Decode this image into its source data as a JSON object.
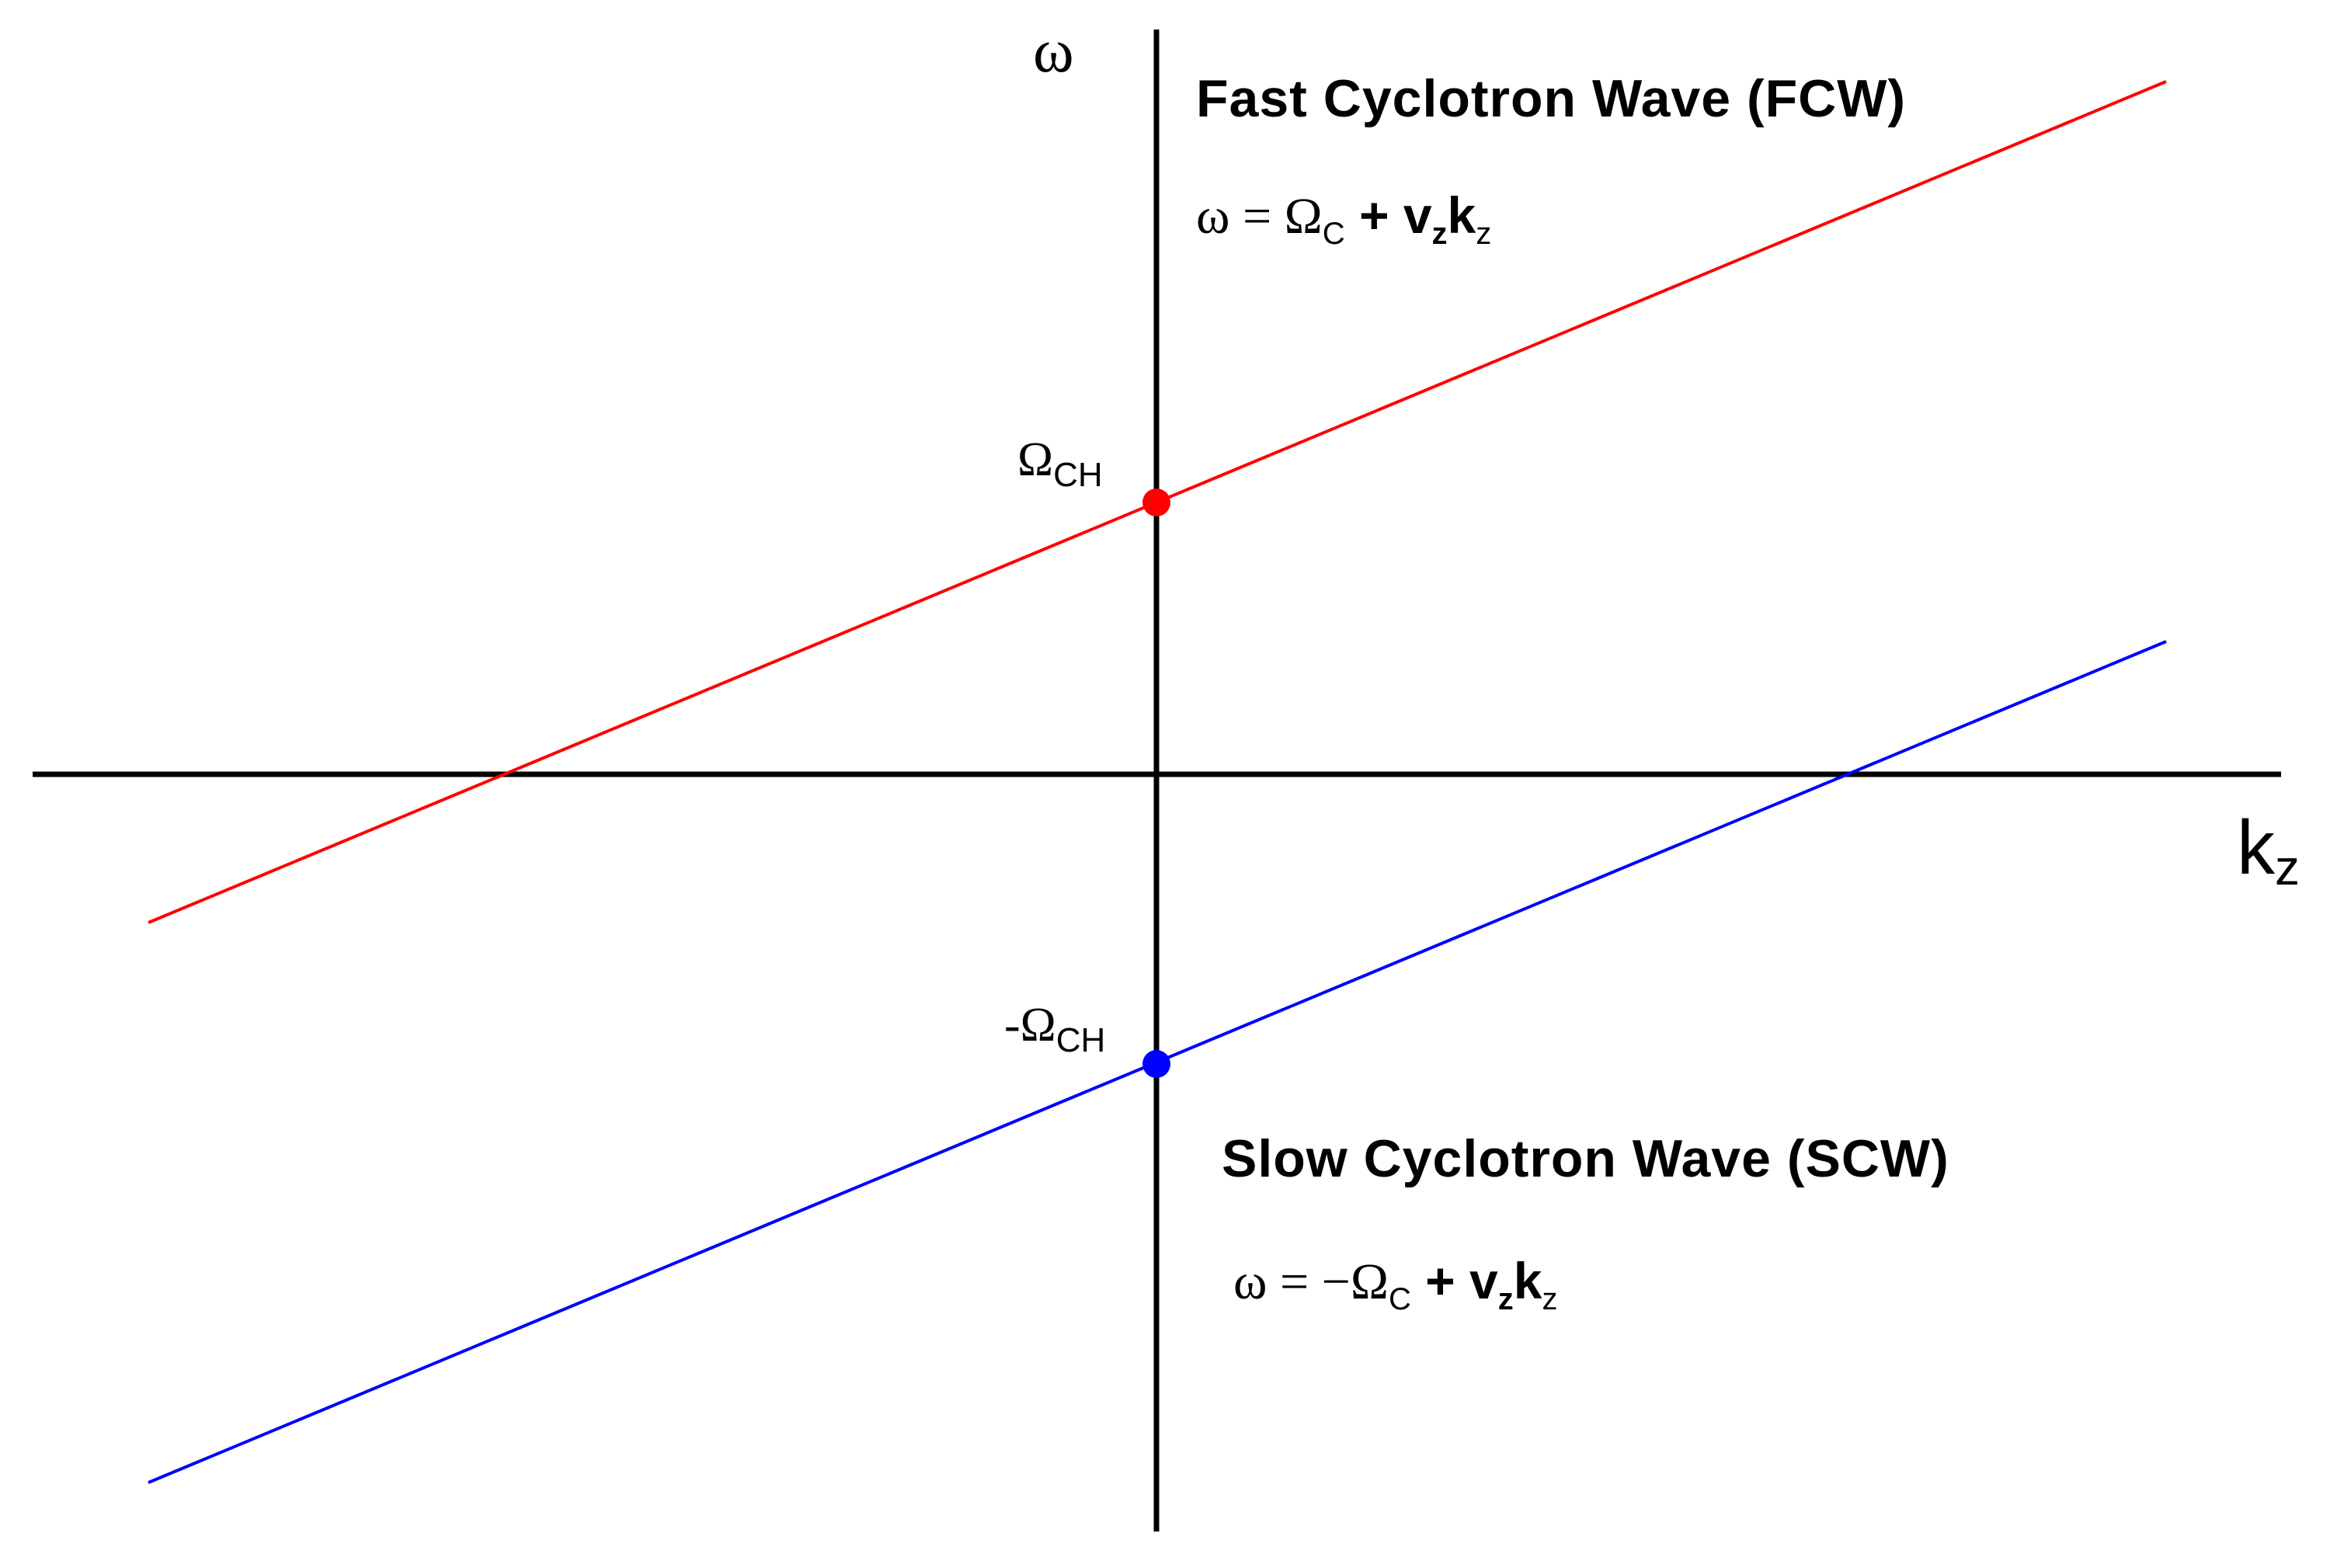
{
  "axes": {
    "y_label": "ω",
    "x_label": "k",
    "x_label_sub": "z"
  },
  "fcw": {
    "title": "Fast Cyclotron Wave (FCW)",
    "equation": {
      "lhs": "ω = Ω",
      "lhs_sub": "C",
      "plus_v": " + v",
      "v_sub": "z",
      "k": "k",
      "k_sub": "z"
    },
    "point_label": {
      "main": "Ω",
      "sub": "CH"
    }
  },
  "scw": {
    "title": "Slow Cyclotron Wave (SCW)",
    "equation": {
      "lhs": "ω = −Ω",
      "lhs_sub": "C",
      "plus_v": " + v",
      "v_sub": "z",
      "k": "k",
      "k_sub": "z"
    },
    "point_label": {
      "main": "-Ω",
      "sub": "CH"
    }
  }
}
